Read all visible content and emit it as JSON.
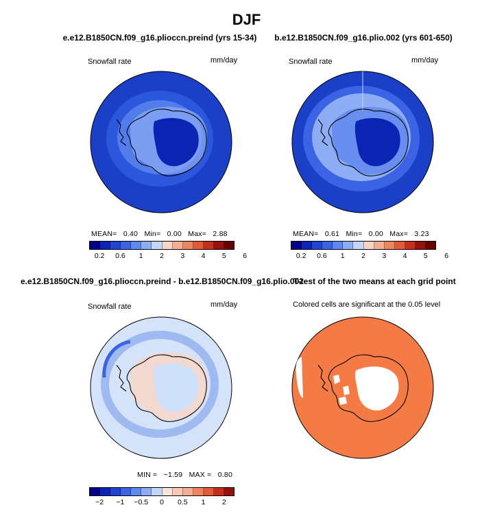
{
  "title": "DJF",
  "colors": {
    "ocean_dark": "#1b3fc6",
    "ocean_mid": "#2a57db",
    "light_blue": "#7fa1ef",
    "pale_blue": "#c7d7f6",
    "diff_bg": "#d5e3fa",
    "diff_ring": "#9fbaf0",
    "diff_pos": "#f7d6c7",
    "sig_orange": "#f47b46",
    "coast": "#000000"
  },
  "chart_data": [
    {
      "type": "heatmap",
      "panel": "top-left",
      "title": "e.e12.B1850CN.f09_g16.plioccn.preind (yrs 15-34)",
      "left_label": "Snowfall rate",
      "right_label": "mm/day",
      "stats": {
        "MEAN": "0.40",
        "Min": "0.00",
        "Max": "2.88"
      },
      "colorbar_ticks": [
        "0.2",
        "0.6",
        "1",
        "2",
        "3",
        "4",
        "5",
        "6"
      ],
      "colorbar_colors": [
        "#00008b",
        "#0b24b4",
        "#1f45d2",
        "#3a64e3",
        "#5e87ef",
        "#8fadf5",
        "#c4d6f9",
        "#f8d4c6",
        "#f3ad92",
        "#ef8560",
        "#e35b36",
        "#c62e1b",
        "#96100d",
        "#6b0000"
      ]
    },
    {
      "type": "heatmap",
      "panel": "top-right",
      "title": "b.e12.B1850CN.f09_g16.plio.002 (yrs 601-650)",
      "left_label": "Snowfall rate",
      "right_label": "mm/day",
      "stats": {
        "MEAN": "0.61",
        "Min": "0.00",
        "Max": "3.23"
      },
      "colorbar_ticks": [
        "0.2",
        "0.6",
        "1",
        "2",
        "3",
        "4",
        "5",
        "6"
      ],
      "colorbar_colors": [
        "#00008b",
        "#0b24b4",
        "#1f45d2",
        "#3a64e3",
        "#5e87ef",
        "#8fadf5",
        "#c4d6f9",
        "#f8d4c6",
        "#f3ad92",
        "#ef8560",
        "#e35b36",
        "#c62e1b",
        "#96100d",
        "#6b0000"
      ]
    },
    {
      "type": "heatmap",
      "panel": "bottom-left",
      "title": "e.e12.B1850CN.f09_g16.plioccn.preind - b.e12.B1850CN.f09_g16.plio.002",
      "left_label": "Snowfall rate",
      "right_label": "mm/day",
      "stats": {
        "MIN": "−1.59",
        "MAX": "0.80"
      },
      "colorbar_ticks": [
        "−2",
        "−1",
        "−0.5",
        "0",
        "0.5",
        "1",
        "2"
      ],
      "colorbar_colors": [
        "#00008b",
        "#0b24b4",
        "#1f45d2",
        "#3a64e3",
        "#5e87ef",
        "#8fadf5",
        "#c4d6f9",
        "#f8e4da",
        "#f7c9b5",
        "#f3ad92",
        "#ef8560",
        "#e35b36",
        "#c62e1b",
        "#96100d"
      ]
    },
    {
      "type": "heatmap",
      "panel": "bottom-right",
      "title": "T-test of the two means at each grid point",
      "left_label": "Colored cells are significant at the 0.05 level"
    }
  ]
}
